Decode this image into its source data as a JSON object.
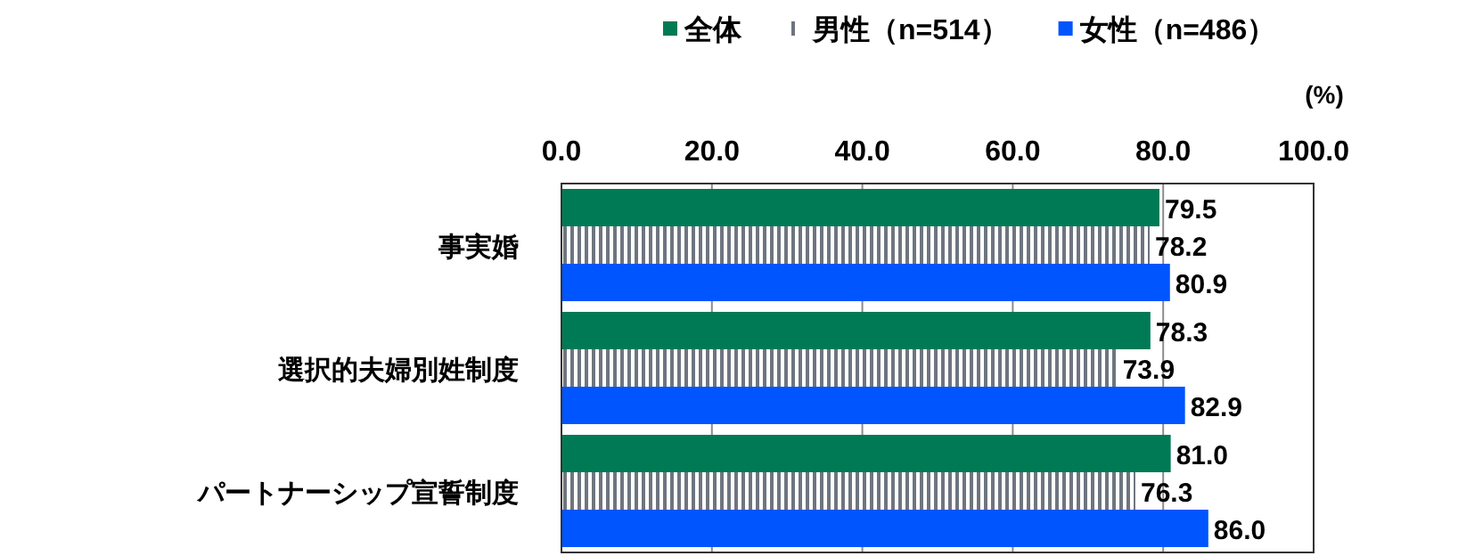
{
  "chart_data": {
    "type": "bar",
    "orientation": "horizontal",
    "xlabel": "(%)",
    "categories": [
      "事実婚",
      "選択的夫婦別姓制度",
      "パートナーシップ宣誓制度"
    ],
    "series": [
      {
        "name": "全体",
        "color": "#007a55",
        "values": [
          79.5,
          78.3,
          81.0
        ],
        "value_labels": [
          "79.5",
          "78.3",
          "81.0"
        ]
      },
      {
        "name": "男性（n=514）",
        "color": "#6e7580",
        "values": [
          78.2,
          73.9,
          76.3
        ],
        "value_labels": [
          "78.2",
          "73.9",
          "76.3"
        ]
      },
      {
        "name": "女性（n=486）",
        "color": "#0055ff",
        "values": [
          80.9,
          82.9,
          86.0
        ],
        "value_labels": [
          "80.9",
          "82.9",
          "86.0"
        ]
      }
    ],
    "xlim": [
      0,
      100
    ],
    "xticks": [
      {
        "value": 0,
        "label": "0.0"
      },
      {
        "value": 20,
        "label": "20.0"
      },
      {
        "value": 40,
        "label": "40.0"
      },
      {
        "value": 60,
        "label": "60.0"
      },
      {
        "value": 80,
        "label": "80.0"
      },
      {
        "value": 100,
        "label": "100.0"
      }
    ],
    "grid": "x",
    "legend": "top"
  }
}
